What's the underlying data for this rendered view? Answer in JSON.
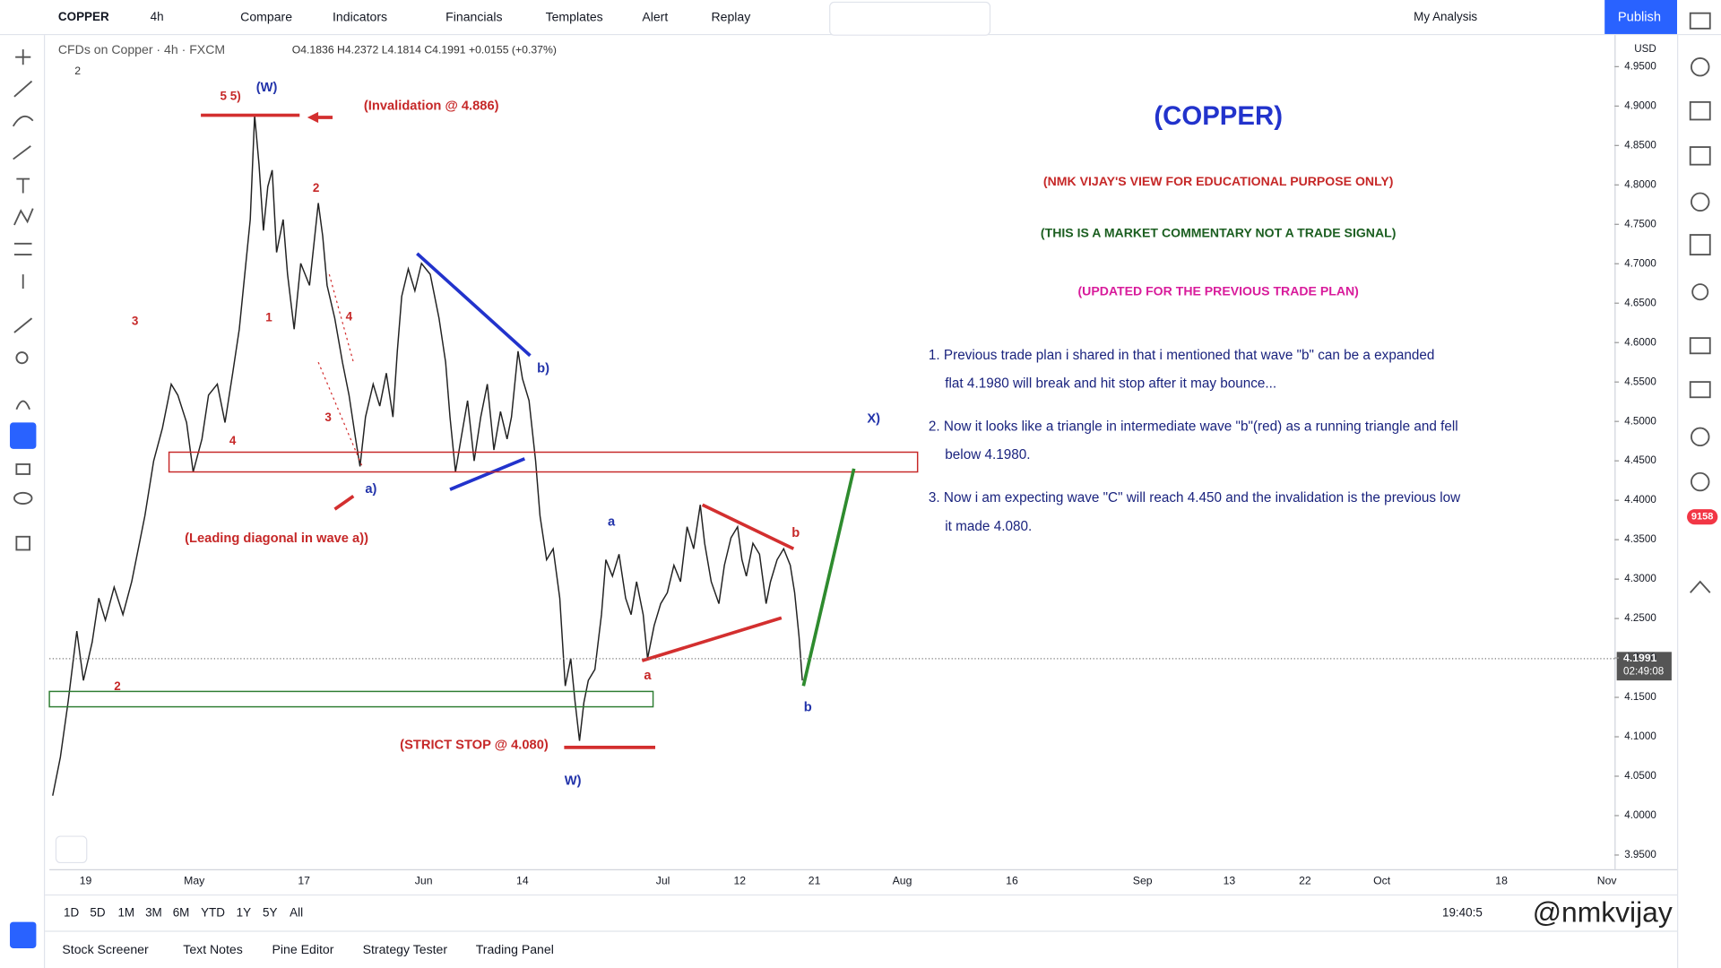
{
  "toolbar": {
    "symbol": "COPPER",
    "interval": "4h",
    "items": [
      "Compare",
      "Indicators",
      "Financials",
      "Templates",
      "Alert",
      "Replay"
    ],
    "layout": "My Analysis",
    "publish": "Publish"
  },
  "legend": {
    "title": "CFDs on Copper · 4h · FXCM",
    "ohlc": "O4.1836 H4.2372 L4.1814 C4.1991 +0.0155 (+0.37%)",
    "indicator_count": "2"
  },
  "annotations": [
    "5 5)",
    "(W)",
    "(Invalidation @ 4.886)",
    "2",
    "1",
    "3",
    "4",
    "4",
    "3",
    "a)",
    "b)",
    "X)",
    "(Leading diagonal in wave a))",
    "a",
    "b",
    "a",
    "b",
    "(STRICT STOP @ 4.080)",
    "W)",
    "2"
  ],
  "notes": {
    "title": "(COPPER)",
    "headers": [
      "(NMK VIJAY'S VIEW FOR EDUCATIONAL PURPOSE ONLY)",
      "(THIS IS A MARKET COMMENTARY NOT A TRADE SIGNAL)",
      "(UPDATED FOR THE PREVIOUS TRADE PLAN)"
    ],
    "points": [
      [
        "1. Previous trade plan i shared in that i mentioned that wave \"b\"  can be a expanded",
        "flat 4.1980 will break and hit stop after it may bounce..."
      ],
      [
        "2. Now it looks like a triangle in intermediate wave \"b\"(red) as a running triangle and fell",
        "below 4.1980."
      ],
      [
        "3. Now i am expecting wave \"C\" will reach 4.450 and the invalidation is the previous low",
        "it made   4.080."
      ]
    ]
  },
  "price_axis": {
    "currency": "USD",
    "ylim": [
      3.932,
      4.99
    ],
    "yticks": [
      {
        "value": 3.95,
        "label": "3.9500"
      },
      {
        "value": 4.0,
        "label": "4.0000"
      },
      {
        "value": 4.05,
        "label": "4.0500"
      },
      {
        "value": 4.1,
        "label": "4.1000"
      },
      {
        "value": 4.15,
        "label": "4.1500"
      },
      {
        "value": 4.2,
        "label": "4.2000"
      },
      {
        "value": 4.25,
        "label": "4.2500"
      },
      {
        "value": 4.3,
        "label": "4.3000"
      },
      {
        "value": 4.35,
        "label": "4.3500"
      },
      {
        "value": 4.4,
        "label": "4.4000"
      },
      {
        "value": 4.45,
        "label": "4.4500"
      },
      {
        "value": 4.5,
        "label": "4.5000"
      },
      {
        "value": 4.55,
        "label": "4.5500"
      },
      {
        "value": 4.6,
        "label": "4.6000"
      },
      {
        "value": 4.65,
        "label": "4.6500"
      },
      {
        "value": 4.7,
        "label": "4.7000"
      },
      {
        "value": 4.75,
        "label": "4.7500"
      },
      {
        "value": 4.8,
        "label": "4.8000"
      },
      {
        "value": 4.85,
        "label": "4.8500"
      },
      {
        "value": 4.9,
        "label": "4.9000"
      },
      {
        "value": 4.95,
        "label": "4.9500"
      }
    ],
    "last_price": 4.1991,
    "countdown": "02:49:08"
  },
  "time_axis": {
    "labels": [
      "19",
      "May",
      "17",
      "Jun",
      "14",
      "Jul",
      "12",
      "21",
      "Aug",
      "16",
      "Sep",
      "13",
      "22",
      "Oct",
      "18",
      "Nov"
    ]
  },
  "range_buttons": [
    "1D",
    "5D",
    "1M",
    "3M",
    "6M",
    "YTD",
    "1Y",
    "5Y",
    "All"
  ],
  "clock": "19:40:5",
  "bottom_tabs": [
    "Stock Screener",
    "Text Notes",
    "Pine Editor",
    "Strategy Tester",
    "Trading Panel"
  ],
  "badge": "9158",
  "watermark": "@nmkvijay"
}
